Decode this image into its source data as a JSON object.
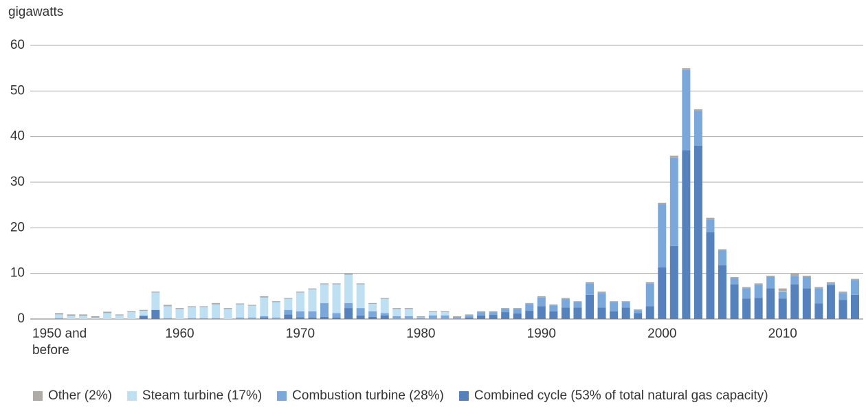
{
  "chart_data": {
    "type": "stacked_bar",
    "y_label": "gigawatts",
    "categories": [
      "1950 and before",
      null,
      null,
      null,
      null,
      null,
      null,
      null,
      null,
      null,
      "1960",
      null,
      null,
      null,
      null,
      null,
      null,
      null,
      null,
      null,
      "1970",
      null,
      null,
      null,
      null,
      null,
      null,
      null,
      null,
      null,
      "1980",
      null,
      null,
      null,
      null,
      null,
      null,
      null,
      null,
      null,
      "1990",
      null,
      null,
      null,
      null,
      null,
      null,
      null,
      null,
      null,
      "2000",
      null,
      null,
      null,
      null,
      null,
      null,
      null,
      null,
      null,
      "2010",
      null,
      null,
      null,
      null,
      null,
      null
    ],
    "series": [
      {
        "name": "Combined cycle (53% of total natural gas capacity)",
        "color": "#5581bd",
        "values": [
          0,
          0,
          0,
          0,
          0,
          0,
          0,
          0.6,
          2.0,
          0,
          0,
          0,
          0,
          0,
          0,
          0,
          0,
          0.3,
          0,
          1.0,
          0.4,
          0.3,
          0.5,
          0.3,
          2.4,
          0.8,
          0.5,
          0.8,
          0,
          0,
          0,
          0,
          0,
          0,
          0.3,
          0.8,
          0.9,
          1.5,
          1.2,
          1.8,
          2.8,
          1.7,
          2.5,
          2.5,
          5.3,
          2.5,
          1.7,
          2.5,
          1.3,
          2.8,
          11.3,
          16.0,
          37.0,
          38.0,
          19.0,
          11.8,
          7.6,
          4.5,
          4.6,
          6.7,
          4.5,
          7.6,
          6.7,
          3.4,
          7.4,
          4.2,
          5.3
        ]
      },
      {
        "name": "Combustion turbine (28%)",
        "color": "#7ba8db",
        "values": [
          0.2,
          0,
          0,
          0,
          0,
          0,
          0,
          0.2,
          0,
          0.2,
          0,
          0.2,
          0.2,
          0.2,
          0,
          0.3,
          0.3,
          0.3,
          0.3,
          1.0,
          1.3,
          1.4,
          3.0,
          1.0,
          1.1,
          1.6,
          1.2,
          0.5,
          0.6,
          0.6,
          0.3,
          0.8,
          0.8,
          0.3,
          0.5,
          0.7,
          0.6,
          0.7,
          1.0,
          1.5,
          1.9,
          1.3,
          1.8,
          1.2,
          2.5,
          3.2,
          2.0,
          1.2,
          0.6,
          5.0,
          13.8,
          19.3,
          17.6,
          7.6,
          2.8,
          3.2,
          1.3,
          2.2,
          2.9,
          2.5,
          1.4,
          1.8,
          2.5,
          3.3,
          0.4,
          1.5,
          3.2
        ]
      },
      {
        "name": "Steam turbine (17%)",
        "color": "#bfdff3",
        "values": [
          0.8,
          0.7,
          0.7,
          0.3,
          1.3,
          0.8,
          1.5,
          1.0,
          3.8,
          2.6,
          2.2,
          2.4,
          2.4,
          3.0,
          2.2,
          2.9,
          2.6,
          4.1,
          3.4,
          2.4,
          4.1,
          4.8,
          4.1,
          6.3,
          6.2,
          5.2,
          1.6,
          3.1,
          1.6,
          1.6,
          0.1,
          0.7,
          0.7,
          0,
          0,
          0,
          0,
          0,
          0,
          0,
          0,
          0,
          0,
          0,
          0,
          0,
          0,
          0,
          0,
          0,
          0,
          0,
          0,
          0,
          0,
          0,
          0,
          0,
          0,
          0,
          0.1,
          0,
          0,
          0,
          0,
          0,
          0
        ]
      },
      {
        "name": "Other (2%)",
        "color": "#aeaaa6",
        "values": [
          0.3,
          0.3,
          0.3,
          0.3,
          0.3,
          0.2,
          0.2,
          0.2,
          0.2,
          0.3,
          0.2,
          0.2,
          0.2,
          0.3,
          0.2,
          0.2,
          0.2,
          0.3,
          0.2,
          0.2,
          0.2,
          0.2,
          0.2,
          0.2,
          0.3,
          0.2,
          0.2,
          0.2,
          0.2,
          0.2,
          0.2,
          0.2,
          0.2,
          0.3,
          0.2,
          0.2,
          0.2,
          0.2,
          0.2,
          0.2,
          0.3,
          0.2,
          0.3,
          0.2,
          0.3,
          0.3,
          0.2,
          0.2,
          0.2,
          0.3,
          0.4,
          0.5,
          0.4,
          0.4,
          0.4,
          0.3,
          0.3,
          0.3,
          0.3,
          0.3,
          0.7,
          0.6,
          0.3,
          0.3,
          0.3,
          0.3,
          0.3
        ]
      }
    ],
    "legend_order": [
      3,
      2,
      1,
      0
    ],
    "ylim": [
      0,
      60
    ],
    "yticks": [
      0,
      10,
      20,
      30,
      40,
      50,
      60
    ],
    "grid": true
  }
}
